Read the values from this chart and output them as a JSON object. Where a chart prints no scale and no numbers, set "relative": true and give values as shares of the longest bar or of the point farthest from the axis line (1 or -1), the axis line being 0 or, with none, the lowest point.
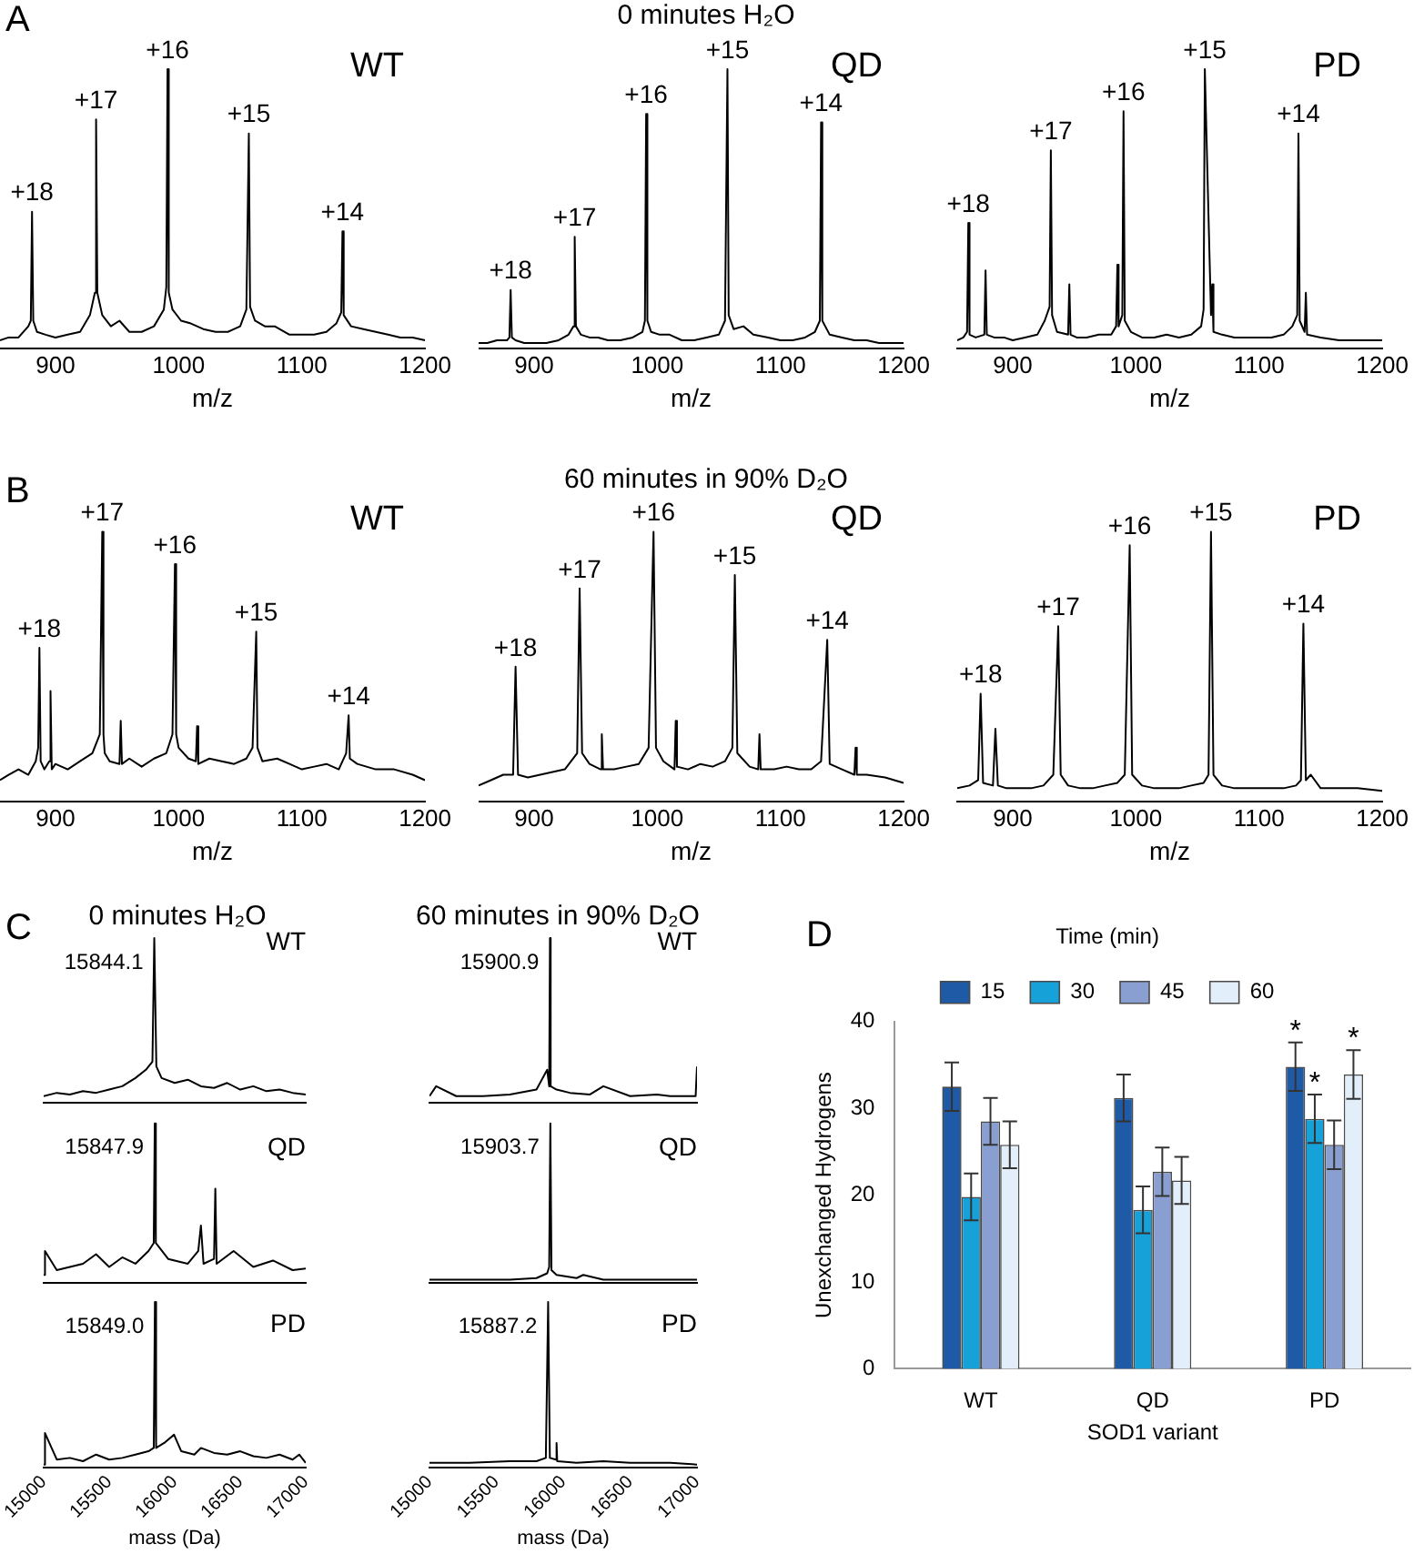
{
  "chart_data": [
    {
      "type": "line",
      "relative": true,
      "subtitle": "WT",
      "xlabel": "m/z",
      "xlim": [
        855,
        1200
      ],
      "xticks": [
        900,
        1000,
        1100,
        1200
      ],
      "annotations": [
        "A",
        {
          "text": "+18",
          "x": 881,
          "y": 0.49
        },
        {
          "text": "+17",
          "x": 933,
          "y": 0.82
        },
        {
          "text": "+16",
          "x": 991,
          "y": 1
        },
        {
          "text": "+15",
          "x": 1057,
          "y": 0.77
        },
        {
          "text": "+14",
          "x": 1133,
          "y": 0.42
        }
      ],
      "series": [
        {
          "color": "#000000",
          "x": [
            855,
            862,
            870,
            878,
            880,
            881,
            882,
            885,
            892,
            900,
            910,
            920,
            928,
            932,
            933,
            934,
            938,
            945,
            952,
            960,
            970,
            980,
            988,
            990,
            991,
            992,
            995,
            1002,
            1010,
            1020,
            1030,
            1040,
            1050,
            1055,
            1057,
            1058,
            1062,
            1070,
            1078,
            1090,
            1100,
            1110,
            1120,
            1128,
            1132,
            1133,
            1134,
            1140,
            1150,
            1160,
            1170,
            1180,
            1190,
            1200
          ],
          "values": [
            0.03,
            0.04,
            0.04,
            0.08,
            0.1,
            0.49,
            0.1,
            0.06,
            0.05,
            0.04,
            0.05,
            0.06,
            0.12,
            0.2,
            0.82,
            0.2,
            0.12,
            0.08,
            0.1,
            0.06,
            0.06,
            0.08,
            0.14,
            0.22,
            1,
            0.2,
            0.14,
            0.1,
            0.09,
            0.07,
            0.06,
            0.06,
            0.08,
            0.14,
            0.77,
            0.15,
            0.1,
            0.08,
            0.08,
            0.05,
            0.05,
            0.05,
            0.06,
            0.09,
            0.13,
            0.42,
            0.12,
            0.08,
            0.07,
            0.06,
            0.05,
            0.04,
            0.04,
            0.03
          ]
        }
      ]
    },
    {
      "type": "line",
      "relative": true,
      "title": "0 minutes H₂O",
      "subtitle": "QD",
      "xlabel": "m/z",
      "xlim": [
        855,
        1200
      ],
      "xticks": [
        900,
        1000,
        1100,
        1200
      ],
      "annotations": [
        {
          "text": "+18",
          "x": 881,
          "y": 0.21
        },
        {
          "text": "+17",
          "x": 933,
          "y": 0.4
        },
        {
          "text": "+16",
          "x": 991,
          "y": 0.84
        },
        {
          "text": "+15",
          "x": 1057,
          "y": 1
        },
        {
          "text": "+14",
          "x": 1133,
          "y": 0.81
        }
      ],
      "series": [
        {
          "color": "#000000",
          "x": [
            855,
            862,
            870,
            878,
            880,
            881,
            882,
            885,
            892,
            900,
            910,
            920,
            928,
            932,
            933,
            934,
            938,
            945,
            952,
            960,
            970,
            980,
            988,
            990,
            991,
            992,
            995,
            1002,
            1010,
            1020,
            1030,
            1040,
            1050,
            1055,
            1057,
            1058,
            1062,
            1070,
            1078,
            1090,
            1100,
            1110,
            1120,
            1128,
            1132,
            1133,
            1134,
            1140,
            1150,
            1160,
            1170,
            1180,
            1190,
            1200
          ],
          "values": [
            0.02,
            0.02,
            0.03,
            0.03,
            0.04,
            0.21,
            0.04,
            0.03,
            0.02,
            0.02,
            0.02,
            0.03,
            0.05,
            0.08,
            0.4,
            0.08,
            0.05,
            0.04,
            0.04,
            0.03,
            0.03,
            0.04,
            0.06,
            0.1,
            0.84,
            0.1,
            0.06,
            0.05,
            0.05,
            0.03,
            0.03,
            0.04,
            0.05,
            0.1,
            1,
            0.12,
            0.07,
            0.08,
            0.05,
            0.04,
            0.03,
            0.03,
            0.04,
            0.06,
            0.1,
            0.81,
            0.1,
            0.05,
            0.04,
            0.03,
            0.03,
            0.02,
            0.02,
            0.02
          ]
        }
      ]
    },
    {
      "type": "line",
      "relative": true,
      "subtitle": "PD",
      "xlabel": "m/z",
      "xlim": [
        855,
        1200
      ],
      "xticks": [
        900,
        1000,
        1100,
        1200
      ],
      "annotations": [
        {
          "text": "+18",
          "x": 864,
          "y": 0.45
        },
        {
          "text": "+17",
          "x": 931,
          "y": 0.71
        },
        {
          "text": "+16",
          "x": 990,
          "y": 0.85
        },
        {
          "text": "+15",
          "x": 1056,
          "y": 1
        },
        {
          "text": "+14",
          "x": 1132,
          "y": 0.77
        }
      ],
      "series": [
        {
          "color": "#000000",
          "x": [
            855,
            860,
            863,
            864,
            865,
            870,
            877,
            878,
            879,
            885,
            893,
            900,
            910,
            920,
            926,
            930,
            931,
            932,
            936,
            945,
            946,
            947,
            952,
            960,
            970,
            980,
            984,
            985,
            986,
            989,
            990,
            991,
            996,
            1005,
            1015,
            1025,
            1035,
            1045,
            1053,
            1055,
            1056,
            1061,
            1062,
            1063,
            1070,
            1080,
            1090,
            1100,
            1110,
            1120,
            1127,
            1131,
            1132,
            1133,
            1137,
            1138,
            1139,
            1150,
            1165,
            1180,
            1200
          ],
          "values": [
            0.03,
            0.04,
            0.06,
            0.45,
            0.05,
            0.04,
            0.05,
            0.28,
            0.05,
            0.04,
            0.04,
            0.03,
            0.04,
            0.05,
            0.1,
            0.15,
            0.71,
            0.12,
            0.06,
            0.05,
            0.23,
            0.05,
            0.04,
            0.04,
            0.05,
            0.05,
            0.08,
            0.3,
            0.08,
            0.12,
            0.85,
            0.1,
            0.06,
            0.04,
            0.04,
            0.05,
            0.04,
            0.05,
            0.08,
            0.14,
            1,
            0.12,
            0.23,
            0.06,
            0.05,
            0.04,
            0.04,
            0.04,
            0.04,
            0.05,
            0.08,
            0.12,
            0.77,
            0.1,
            0.06,
            0.2,
            0.05,
            0.04,
            0.03,
            0.03,
            0.03
          ]
        }
      ]
    },
    {
      "type": "line",
      "relative": true,
      "subtitle": "WT",
      "xlabel": "m/z",
      "xlim": [
        855,
        1200
      ],
      "xticks": [
        900,
        1000,
        1100,
        1200
      ],
      "annotations": [
        "B",
        {
          "text": "+18",
          "x": 887,
          "y": 0.57
        },
        {
          "text": "+17",
          "x": 938,
          "y": 1
        },
        {
          "text": "+16",
          "x": 997,
          "y": 0.88
        },
        {
          "text": "+15",
          "x": 1063,
          "y": 0.63
        },
        {
          "text": "+14",
          "x": 1138,
          "y": 0.32
        }
      ],
      "series": [
        {
          "color": "#000000",
          "x": [
            855,
            862,
            870,
            878,
            884,
            886,
            887,
            888,
            891,
            895,
            896,
            897,
            900,
            910,
            920,
            930,
            936,
            938,
            939,
            940,
            944,
            952,
            953,
            954,
            960,
            970,
            980,
            990,
            995,
            997,
            998,
            1000,
            1008,
            1014,
            1015,
            1016,
            1025,
            1035,
            1045,
            1055,
            1060,
            1063,
            1064,
            1068,
            1080,
            1090,
            1100,
            1110,
            1120,
            1130,
            1136,
            1138,
            1139,
            1145,
            1160,
            1175,
            1190,
            1200
          ],
          "values": [
            0.08,
            0.1,
            0.12,
            0.1,
            0.15,
            0.2,
            0.57,
            0.15,
            0.12,
            0.15,
            0.41,
            0.12,
            0.14,
            0.12,
            0.15,
            0.18,
            0.25,
            1,
            0.25,
            0.18,
            0.15,
            0.14,
            0.3,
            0.14,
            0.16,
            0.13,
            0.16,
            0.18,
            0.25,
            0.88,
            0.25,
            0.2,
            0.16,
            0.15,
            0.28,
            0.14,
            0.16,
            0.15,
            0.14,
            0.16,
            0.2,
            0.63,
            0.2,
            0.15,
            0.16,
            0.14,
            0.12,
            0.13,
            0.14,
            0.12,
            0.18,
            0.32,
            0.16,
            0.14,
            0.12,
            0.12,
            0.1,
            0.08
          ]
        }
      ]
    },
    {
      "type": "line",
      "relative": true,
      "title": "60 minutes in 90% D₂O",
      "subtitle": "QD",
      "xlabel": "m/z",
      "xlim": [
        855,
        1200
      ],
      "xticks": [
        900,
        1000,
        1100,
        1200
      ],
      "annotations": [
        {
          "text": "+18",
          "x": 885,
          "y": 0.5
        },
        {
          "text": "+17",
          "x": 937,
          "y": 0.79
        },
        {
          "text": "+16",
          "x": 997,
          "y": 1
        },
        {
          "text": "+15",
          "x": 1063,
          "y": 0.84
        },
        {
          "text": "+14",
          "x": 1138,
          "y": 0.6
        }
      ],
      "series": [
        {
          "color": "#000000",
          "x": [
            855,
            865,
            875,
            883,
            885,
            887,
            895,
            905,
            915,
            925,
            935,
            937,
            939,
            945,
            954,
            955,
            956,
            965,
            975,
            985,
            993,
            997,
            999,
            1005,
            1014,
            1015,
            1016,
            1025,
            1035,
            1045,
            1055,
            1061,
            1063,
            1065,
            1075,
            1082,
            1083,
            1084,
            1095,
            1105,
            1115,
            1125,
            1133,
            1138,
            1140,
            1150,
            1160,
            1161,
            1162,
            1170,
            1185,
            1200
          ],
          "values": [
            0.06,
            0.08,
            0.1,
            0.1,
            0.5,
            0.1,
            0.09,
            0.1,
            0.11,
            0.12,
            0.18,
            0.79,
            0.18,
            0.14,
            0.12,
            0.25,
            0.12,
            0.12,
            0.13,
            0.14,
            0.2,
            1,
            0.2,
            0.15,
            0.12,
            0.3,
            0.13,
            0.12,
            0.14,
            0.13,
            0.15,
            0.2,
            0.84,
            0.18,
            0.13,
            0.12,
            0.25,
            0.12,
            0.12,
            0.13,
            0.12,
            0.12,
            0.15,
            0.6,
            0.14,
            0.12,
            0.1,
            0.2,
            0.1,
            0.1,
            0.09,
            0.07
          ]
        }
      ]
    },
    {
      "type": "line",
      "relative": true,
      "subtitle": "PD",
      "xlabel": "m/z",
      "xlim": [
        855,
        1200
      ],
      "xticks": [
        900,
        1000,
        1100,
        1200
      ],
      "annotations": [
        {
          "text": "+18",
          "x": 874,
          "y": 0.4
        },
        {
          "text": "+17",
          "x": 937,
          "y": 0.65
        },
        {
          "text": "+16",
          "x": 995,
          "y": 0.95
        },
        {
          "text": "+15",
          "x": 1061,
          "y": 1
        },
        {
          "text": "+14",
          "x": 1136,
          "y": 0.66
        }
      ],
      "series": [
        {
          "color": "#000000",
          "x": [
            855,
            865,
            872,
            874,
            876,
            884,
            886,
            888,
            895,
            905,
            915,
            925,
            933,
            937,
            939,
            945,
            955,
            965,
            975,
            985,
            991,
            995,
            997,
            1005,
            1015,
            1025,
            1035,
            1045,
            1055,
            1059,
            1061,
            1063,
            1070,
            1080,
            1090,
            1100,
            1110,
            1120,
            1130,
            1134,
            1136,
            1138,
            1142,
            1150,
            1165,
            1180,
            1200
          ],
          "values": [
            0.05,
            0.06,
            0.08,
            0.4,
            0.07,
            0.06,
            0.27,
            0.06,
            0.05,
            0.05,
            0.05,
            0.06,
            0.1,
            0.65,
            0.1,
            0.06,
            0.05,
            0.05,
            0.06,
            0.07,
            0.1,
            0.95,
            0.1,
            0.06,
            0.05,
            0.05,
            0.05,
            0.06,
            0.07,
            0.1,
            1,
            0.1,
            0.06,
            0.05,
            0.05,
            0.05,
            0.05,
            0.05,
            0.06,
            0.08,
            0.66,
            0.08,
            0.1,
            0.05,
            0.05,
            0.05,
            0.04
          ]
        }
      ]
    },
    {
      "type": "line",
      "relative": true,
      "title": "0 minutes H₂O",
      "subtitle": "WT",
      "xlim": [
        15000,
        17000
      ],
      "xticks": [
        15000,
        15500,
        16000,
        16500,
        17000
      ],
      "tick_labels": false,
      "annotations": [
        "C",
        {
          "text": "15844.1",
          "x": 15844.1,
          "y": 0.85
        }
      ],
      "series": [
        {
          "color": "#000000",
          "x": [
            15000,
            15100,
            15200,
            15300,
            15400,
            15500,
            15600,
            15700,
            15780,
            15830,
            15844.1,
            15860,
            15900,
            16000,
            16100,
            16200,
            16300,
            16400,
            16500,
            16600,
            16700,
            16800,
            16900,
            17000
          ],
          "values": [
            0.04,
            0.06,
            0.05,
            0.07,
            0.06,
            0.08,
            0.1,
            0.15,
            0.2,
            0.25,
            1,
            0.22,
            0.15,
            0.12,
            0.14,
            0.1,
            0.09,
            0.12,
            0.08,
            0.1,
            0.07,
            0.08,
            0.06,
            0.05
          ]
        }
      ]
    },
    {
      "type": "line",
      "relative": true,
      "title": "60 minutes in 90% D₂O",
      "subtitle": "WT",
      "xlim": [
        15000,
        17000
      ],
      "xticks": [
        15000,
        15500,
        16000,
        16500,
        17000
      ],
      "tick_labels": false,
      "annotations": [
        {
          "text": "15900.9",
          "x": 15900.9,
          "y": 0.85
        }
      ],
      "series": [
        {
          "color": "#000000",
          "x": [
            15000,
            15050,
            15200,
            15400,
            15600,
            15800,
            15880,
            15895,
            15900.9,
            15906,
            15950,
            16050,
            16200,
            16300,
            16500,
            16700,
            16800,
            16950,
            16990,
            17000
          ],
          "values": [
            0.04,
            0.1,
            0.04,
            0.04,
            0.05,
            0.08,
            0.2,
            0.1,
            1,
            0.1,
            0.08,
            0.06,
            0.05,
            0.1,
            0.04,
            0.05,
            0.04,
            0.04,
            0.04,
            0.22
          ]
        }
      ]
    },
    {
      "type": "line",
      "relative": true,
      "subtitle": "QD",
      "xlim": [
        15000,
        17000
      ],
      "xticks": [
        15000,
        15500,
        16000,
        16500,
        17000
      ],
      "tick_labels": false,
      "annotations": [
        {
          "text": "15847.9",
          "x": 15847.9,
          "y": 0.85
        }
      ],
      "series": [
        {
          "color": "#000000",
          "x": [
            15000,
            15010,
            15100,
            15200,
            15300,
            15400,
            15500,
            15600,
            15700,
            15800,
            15840,
            15847.9,
            15856,
            15950,
            16100,
            16180,
            16200,
            16220,
            16300,
            16310,
            16320,
            16450,
            16600,
            16750,
            16900,
            17000
          ],
          "values": [
            0.05,
            0.2,
            0.08,
            0.1,
            0.12,
            0.18,
            0.1,
            0.16,
            0.12,
            0.2,
            0.25,
            1,
            0.25,
            0.15,
            0.12,
            0.2,
            0.36,
            0.12,
            0.15,
            0.59,
            0.12,
            0.2,
            0.1,
            0.14,
            0.08,
            0.09
          ]
        }
      ]
    },
    {
      "type": "line",
      "relative": true,
      "subtitle": "QD",
      "xlim": [
        15000,
        17000
      ],
      "xticks": [
        15000,
        15500,
        16000,
        16500,
        17000
      ],
      "tick_labels": false,
      "annotations": [
        {
          "text": "15903.7",
          "x": 15903.7,
          "y": 0.85
        }
      ],
      "series": [
        {
          "color": "#000000",
          "x": [
            15000,
            15300,
            15600,
            15800,
            15880,
            15895,
            15903.7,
            15912,
            15950,
            16100,
            16150,
            16300,
            16600,
            17000
          ],
          "values": [
            0.02,
            0.02,
            0.02,
            0.03,
            0.06,
            0.1,
            1,
            0.08,
            0.05,
            0.03,
            0.05,
            0.02,
            0.02,
            0.02
          ]
        }
      ]
    },
    {
      "type": "line",
      "relative": true,
      "subtitle": "PD",
      "xlabel": "mass (Da)",
      "xlim": [
        15000,
        17000
      ],
      "xticks": [
        15000,
        15500,
        16000,
        16500,
        17000
      ],
      "annotations": [
        {
          "text": "15849.0",
          "x": 15849,
          "y": 0.85
        }
      ],
      "series": [
        {
          "color": "#000000",
          "x": [
            15000,
            15010,
            15100,
            15200,
            15300,
            15400,
            15500,
            15600,
            15700,
            15800,
            15840,
            15849,
            15858,
            15920,
            15995,
            16050,
            16150,
            16200,
            16300,
            16400,
            16500,
            16600,
            16700,
            16800,
            16900,
            16950,
            17000
          ],
          "values": [
            0.02,
            0.21,
            0.05,
            0.06,
            0.04,
            0.08,
            0.05,
            0.06,
            0.08,
            0.1,
            0.12,
            1,
            0.12,
            0.15,
            0.2,
            0.1,
            0.08,
            0.12,
            0.09,
            0.08,
            0.1,
            0.07,
            0.06,
            0.08,
            0.05,
            0.08,
            0.03
          ]
        }
      ]
    },
    {
      "type": "line",
      "relative": true,
      "subtitle": "PD",
      "xlabel": "mass (Da)",
      "xlim": [
        15000,
        17000
      ],
      "xticks": [
        15000,
        15500,
        16000,
        16500,
        17000
      ],
      "annotations": [
        {
          "text": "15887.2",
          "x": 15887.2,
          "y": 0.85
        }
      ],
      "series": [
        {
          "color": "#000000",
          "x": [
            15000,
            15300,
            15600,
            15800,
            15870,
            15887.2,
            15900,
            15945,
            15950,
            15955,
            16100,
            16300,
            16500,
            16800,
            17000
          ],
          "values": [
            0.03,
            0.03,
            0.04,
            0.04,
            0.06,
            1,
            0.06,
            0.05,
            0.15,
            0.04,
            0.03,
            0.04,
            0.03,
            0.03,
            0.02
          ]
        }
      ]
    },
    {
      "type": "bar",
      "xlabel": "SOD1 variant",
      "ylabel": "Unexchanged Hydrogens",
      "legend_title": "Time (min)",
      "legend": "top",
      "categories": [
        "WT",
        "QD",
        "PD"
      ],
      "ylim": [
        0,
        40
      ],
      "yticks": [
        0,
        10,
        20,
        30,
        40
      ],
      "annotations": [
        "D",
        "*",
        "*",
        "*"
      ],
      "series": [
        {
          "name": "15",
          "color": "#1f5aa6",
          "values": [
            32.5,
            31.2,
            34.8
          ],
          "errors": [
            2.8,
            2.7,
            2.8
          ]
        },
        {
          "name": "30",
          "color": "#17a1d9",
          "values": [
            19.8,
            18.3,
            28.8
          ],
          "errors": [
            2.7,
            2.7,
            2.8
          ]
        },
        {
          "name": "45",
          "color": "#8a9fd1",
          "values": [
            28.5,
            22.7,
            25.8
          ],
          "errors": [
            2.7,
            2.8,
            2.8
          ]
        },
        {
          "name": "60",
          "color": "#e2eef9",
          "values": [
            25.8,
            21.7,
            33.9
          ],
          "errors": [
            2.7,
            2.7,
            2.8
          ]
        }
      ]
    }
  ]
}
